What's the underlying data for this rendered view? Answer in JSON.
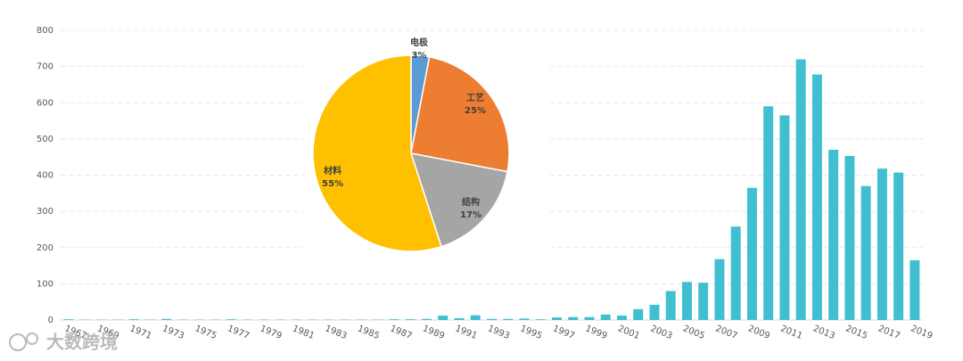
{
  "chart_data": [
    {
      "type": "bar",
      "categories": [
        "1967",
        null,
        "1969",
        null,
        "1971",
        null,
        "1973",
        null,
        "1975",
        null,
        "1977",
        null,
        "1979",
        null,
        "1981",
        null,
        "1983",
        null,
        "1985",
        null,
        "1987",
        null,
        "1989",
        null,
        "1991",
        null,
        "1993",
        null,
        "1995",
        null,
        "1997",
        null,
        "1999",
        null,
        "2001",
        null,
        "2003",
        null,
        "2005",
        null,
        "2007",
        null,
        "2009",
        null,
        "2011",
        null,
        "2013",
        null,
        "2015",
        null,
        "2017",
        null,
        "2019"
      ],
      "values": [
        2,
        1,
        1,
        1,
        2,
        1,
        3,
        1,
        1,
        1,
        2,
        1,
        1,
        1,
        1,
        1,
        1,
        1,
        1,
        1,
        2,
        2,
        3,
        12,
        5,
        13,
        3,
        3,
        4,
        2,
        7,
        8,
        8,
        15,
        12,
        30,
        42,
        80,
        105,
        103,
        168,
        258,
        365,
        590,
        565,
        720,
        678,
        470,
        453,
        370,
        418,
        407,
        165
      ],
      "color": "#3fbfcf",
      "ylim": [
        0,
        800
      ],
      "yticks": [
        0,
        100,
        200,
        300,
        400,
        500,
        600,
        700,
        800
      ],
      "grid": true
    },
    {
      "type": "pie",
      "categories": [
        "电极",
        "工艺",
        "结构",
        "材料"
      ],
      "values": [
        3,
        25,
        17,
        55
      ],
      "value_labels": [
        "3%",
        "25%",
        "17%",
        "55%"
      ],
      "colors": [
        "#5b9bd5",
        "#ed7d31",
        "#a5a5a5",
        "#ffc000"
      ]
    }
  ],
  "watermark": "大数跨境"
}
